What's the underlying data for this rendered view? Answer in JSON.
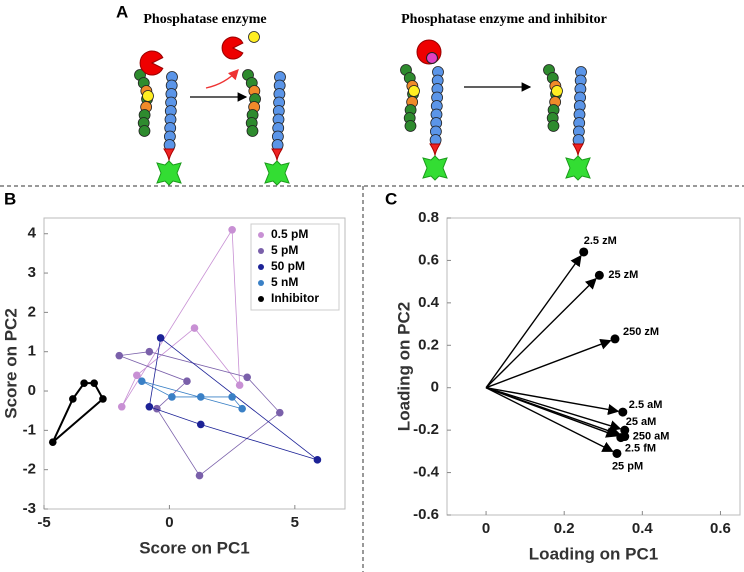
{
  "panel_a": {
    "label": "A",
    "titles": [
      "Phosphatase enzyme",
      "Phosphatase enzyme and inhibitor"
    ]
  },
  "chart_data": [
    {
      "type": "scatter",
      "panel": "B",
      "xlabel": "Score on PC1",
      "ylabel": "Score on PC2",
      "xlim": [
        -5,
        7
      ],
      "ylim": [
        -3,
        4.4
      ],
      "xticks": [
        -5,
        0,
        5
      ],
      "yticks": [
        -3,
        -2,
        -1,
        0,
        1,
        2,
        3,
        4
      ],
      "legend": "upper right",
      "series": [
        {
          "name": "0.5 pM",
          "color": "#c890d4",
          "x": [
            2.5,
            2.8,
            1.0,
            -1.3,
            -1.9
          ],
          "values": [
            4.1,
            0.15,
            1.6,
            0.4,
            -0.4
          ]
        },
        {
          "name": "5 pM",
          "color": "#7a60aa",
          "x": [
            -2.0,
            -0.8,
            3.1,
            4.4,
            1.2,
            -0.5,
            0.7
          ],
          "values": [
            0.9,
            1.0,
            0.35,
            -0.55,
            -2.15,
            -0.45,
            0.25
          ]
        },
        {
          "name": "50 pM",
          "color": "#1c2296",
          "x": [
            -0.35,
            5.9,
            1.25,
            -0.8
          ],
          "values": [
            1.35,
            -1.75,
            -0.85,
            -0.4
          ]
        },
        {
          "name": "5 nM",
          "color": "#3a80c6",
          "x": [
            -1.1,
            0.1,
            1.25,
            2.5,
            2.9
          ],
          "values": [
            0.25,
            -0.15,
            -0.15,
            -0.15,
            -0.45
          ]
        },
        {
          "name": "Inhibitor",
          "color": "#000000",
          "x": [
            -4.65,
            -3.85,
            -3.4,
            -3.0,
            -2.65
          ],
          "values": [
            -1.3,
            -0.2,
            0.2,
            0.2,
            -0.2
          ]
        }
      ]
    },
    {
      "type": "biplot",
      "panel": "C",
      "xlabel": "Loading on PC1",
      "ylabel": "Loading on PC2",
      "xlim": [
        -0.1,
        0.65
      ],
      "ylim": [
        -0.6,
        0.8
      ],
      "xticks": [
        0,
        0.2,
        0.4,
        0.6
      ],
      "yticks": [
        -0.6,
        -0.4,
        -0.2,
        0,
        0.2,
        0.4,
        0.6,
        0.8
      ],
      "color": "#000000",
      "labels": [
        "2.5 zM",
        "25 zM",
        "250 zM",
        "2.5 aM",
        "25 aM",
        "250 aM",
        "2.5 fM",
        "25 pM"
      ],
      "x": [
        0.25,
        0.29,
        0.33,
        0.35,
        0.355,
        0.355,
        0.345,
        0.335
      ],
      "values": [
        0.64,
        0.53,
        0.23,
        -0.115,
        -0.2,
        -0.23,
        -0.235,
        -0.31
      ]
    }
  ]
}
